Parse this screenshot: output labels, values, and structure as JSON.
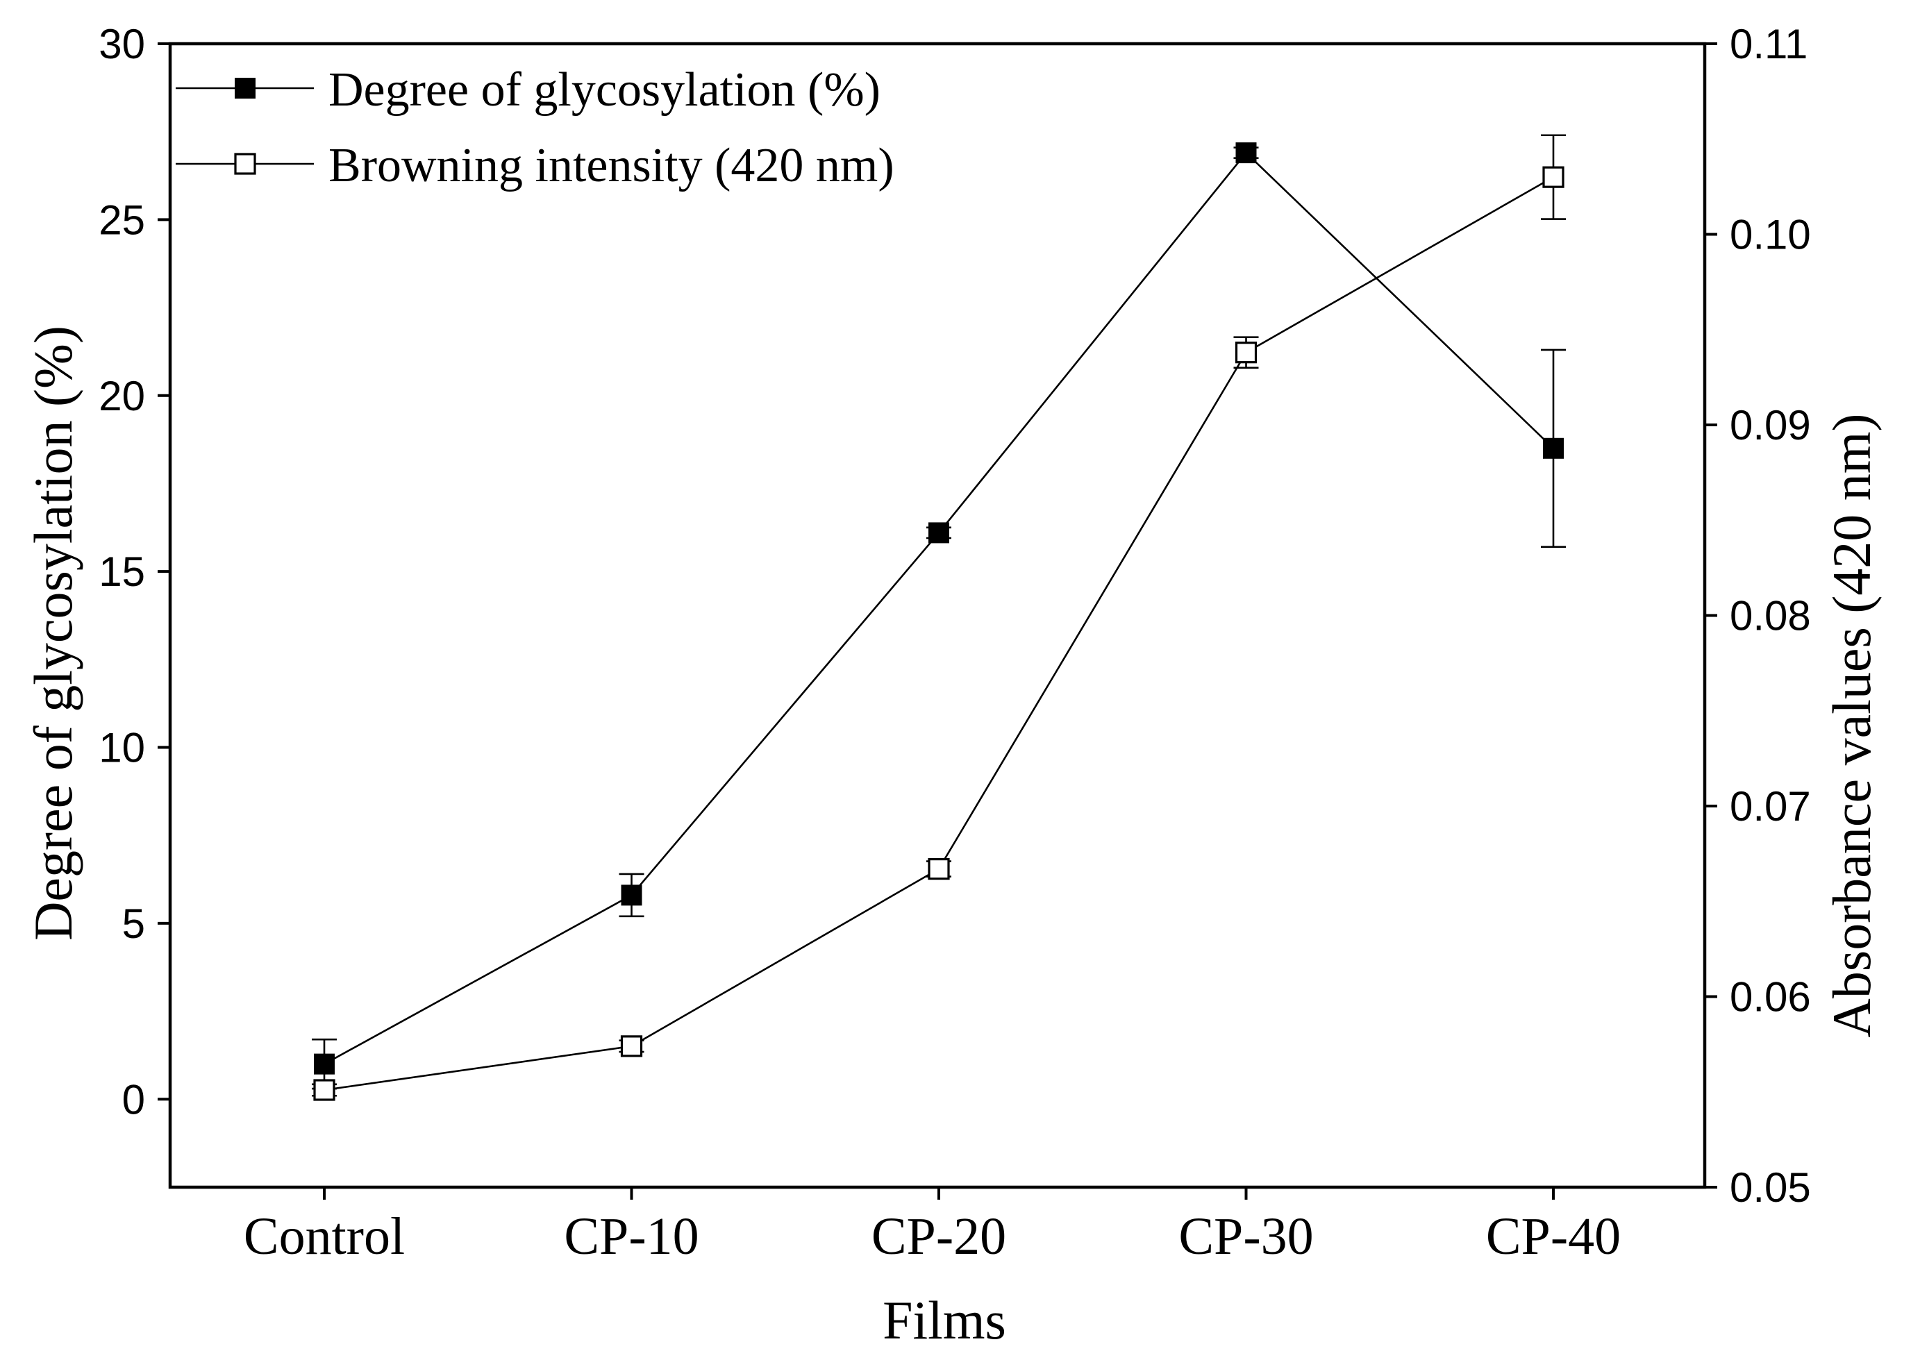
{
  "chart_data": {
    "type": "line",
    "xlabel": "Films",
    "categories": [
      "Control",
      "CP-10",
      "CP-20",
      "CP-30",
      "CP-40"
    ],
    "y_left": {
      "label": "Degree of glycosylation (%)",
      "ylim": [
        -2.5,
        30
      ],
      "ticks": [
        0,
        5,
        10,
        15,
        20,
        25,
        30
      ],
      "tick_labels": [
        "0",
        "5",
        "10",
        "15",
        "20",
        "25",
        "30"
      ]
    },
    "y_right": {
      "label": "Absorbance values (420 nm)",
      "ylim": [
        0.05,
        0.11
      ],
      "ticks": [
        0.05,
        0.06,
        0.07,
        0.08,
        0.09,
        0.1,
        0.11
      ],
      "tick_labels": [
        "0.05",
        "0.06",
        "0.07",
        "0.08",
        "0.09",
        "0.10",
        "0.11"
      ]
    },
    "series": [
      {
        "name": "Degree of glycosylation (%)",
        "axis": "left",
        "marker": "filled-square",
        "values": [
          1.0,
          5.8,
          16.1,
          26.9,
          18.5
        ],
        "errors": [
          0.7,
          0.6,
          0.15,
          0.15,
          2.8
        ]
      },
      {
        "name": "Browning intensity (420 nm)",
        "axis": "right",
        "marker": "open-square",
        "values": [
          0.0551,
          0.0574,
          0.0667,
          0.0938,
          0.103
        ],
        "errors": [
          0.0003,
          0.0003,
          0.0004,
          0.0008,
          0.0022
        ]
      }
    ],
    "legend_position": "top-left"
  }
}
